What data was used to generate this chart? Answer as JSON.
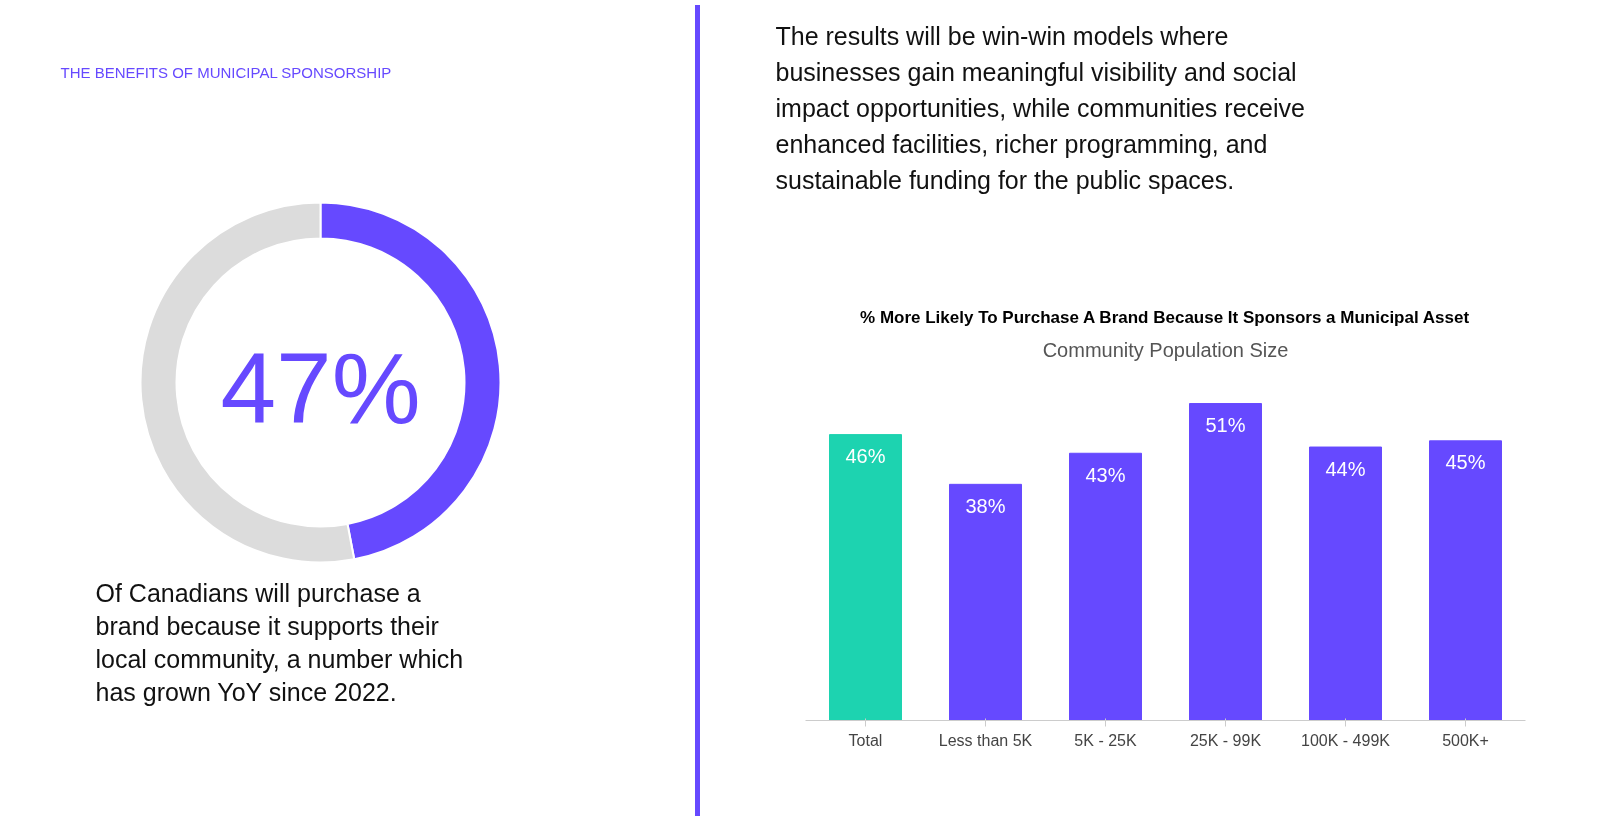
{
  "chart_data": [
    {
      "type": "donut",
      "title": "THE BENEFITS OF MUNICIPAL SPONSORSHIP",
      "categories": [
        null,
        null
      ],
      "values": [
        47,
        53
      ],
      "colors": [
        "#6649ff",
        "#dcdcdc"
      ],
      "value_labels": [
        "47%",
        null
      ],
      "annotations": [
        "Of Canadians will purchase a brand because it supports their local community, a number which has grown YoY since 2022."
      ]
    },
    {
      "type": "other",
      "annotations": [
        "The results will be win-win models where businesses gain meaningful visibility and social impact opportunities, while communities receive enhanced facilities, richer programming, and sustainable funding for the public spaces."
      ]
    },
    {
      "type": "bar",
      "title": "% More Likely To Purchase A Brand Because It Sponsors a Municipal Asset",
      "subtitle": "Community Population Size",
      "categories": [
        "Total",
        "Less than 5K",
        "5K - 25K",
        "25K - 99K",
        "100K - 499K",
        "500K+"
      ],
      "values": [
        46,
        38,
        43,
        51,
        44,
        45
      ],
      "colors": [
        "#1dd3b0",
        "#6649ff",
        "#6649ff",
        "#6649ff",
        "#6649ff",
        "#6649ff"
      ],
      "value_labels": [
        "46%",
        "38%",
        "43%",
        "51%",
        "44%",
        "45%"
      ]
    }
  ]
}
